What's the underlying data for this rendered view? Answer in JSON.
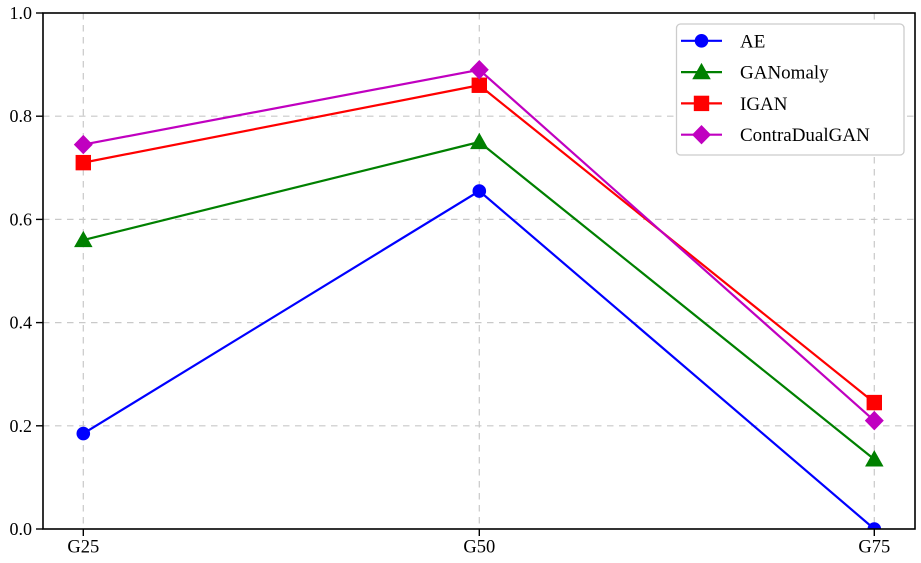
{
  "figure": {
    "background": "#ffffff"
  },
  "chart_data": {
    "type": "line",
    "title": "",
    "xlabel": "",
    "ylabel": "",
    "categories": [
      "G25",
      "G50",
      "G75"
    ],
    "series": [
      {
        "name": "AE",
        "color": "#0000FF",
        "marker": "circle",
        "values": [
          0.185,
          0.655,
          0.0
        ]
      },
      {
        "name": "GANomaly",
        "color": "#008000",
        "marker": "triangle-up",
        "values": [
          0.56,
          0.75,
          0.135
        ]
      },
      {
        "name": "IGAN",
        "color": "#FF0000",
        "marker": "square",
        "values": [
          0.71,
          0.86,
          0.245
        ]
      },
      {
        "name": "ContraDualGAN",
        "color": "#C000C0",
        "marker": "diamond",
        "values": [
          0.745,
          0.89,
          0.21
        ]
      }
    ],
    "ylim": [
      0.0,
      1.0
    ],
    "yticks": [
      0.0,
      0.2,
      0.4,
      0.6,
      0.8,
      1.0
    ],
    "ytick_labels": [
      "0.0",
      "0.2",
      "0.4",
      "0.6",
      "0.8",
      "1.0"
    ],
    "grid": {
      "show": true,
      "style": "dashed",
      "color": "#c9c9c9"
    },
    "legend": {
      "position": "top-right",
      "entries": [
        "AE",
        "GANomaly",
        "IGAN",
        "ContraDualGAN"
      ]
    },
    "axis_color": "#000000",
    "tick_label_color": "#000000"
  }
}
